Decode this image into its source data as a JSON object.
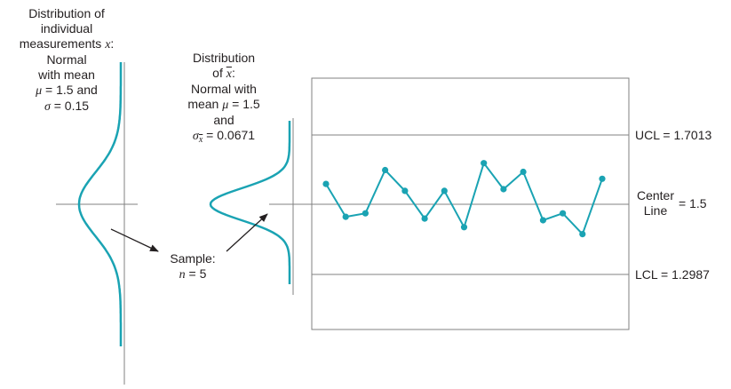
{
  "labels": {
    "individual": {
      "line1": "Distribution of",
      "line2": "individual",
      "line3_text": "measurements ",
      "line3_var": "x",
      "line3_colon": ":",
      "line4": "Normal",
      "line5": "with mean",
      "line6_sym": "μ",
      "line6_rest": " = 1.5 and",
      "line7_sym": "σ",
      "line7_rest": " = 0.15"
    },
    "xbar_dist": {
      "line1": "Distribution",
      "line2_text": "of ",
      "line2_var": "x",
      "line2_colon": ":",
      "line3": "Normal with",
      "line4_text": "mean ",
      "line4_sym": "μ",
      "line4_rest": " = 1.5",
      "line5": "and",
      "line6_sym": "σ",
      "line6_sub": "x",
      "line6_rest": " = 0.0671"
    },
    "sample": {
      "line1": "Sample:",
      "line2_var": "n",
      "line2_rest": " = 5"
    },
    "ucl": "UCL = 1.7013",
    "center_line1": "Center",
    "center_line2": "Line",
    "center_value": "= 1.5",
    "lcl": "LCL = 1.2987"
  },
  "chart_data": {
    "type": "line",
    "ucl": 1.7013,
    "center": 1.5,
    "lcl": 1.2987,
    "values": [
      1.56,
      1.465,
      1.475,
      1.6,
      1.54,
      1.46,
      1.54,
      1.435,
      1.62,
      1.545,
      1.595,
      1.455,
      1.475,
      1.415,
      1.575
    ]
  },
  "colors": {
    "series": "#1aa3b3",
    "axis": "#808080",
    "text": "#231f20",
    "arrow": "#231f20"
  }
}
